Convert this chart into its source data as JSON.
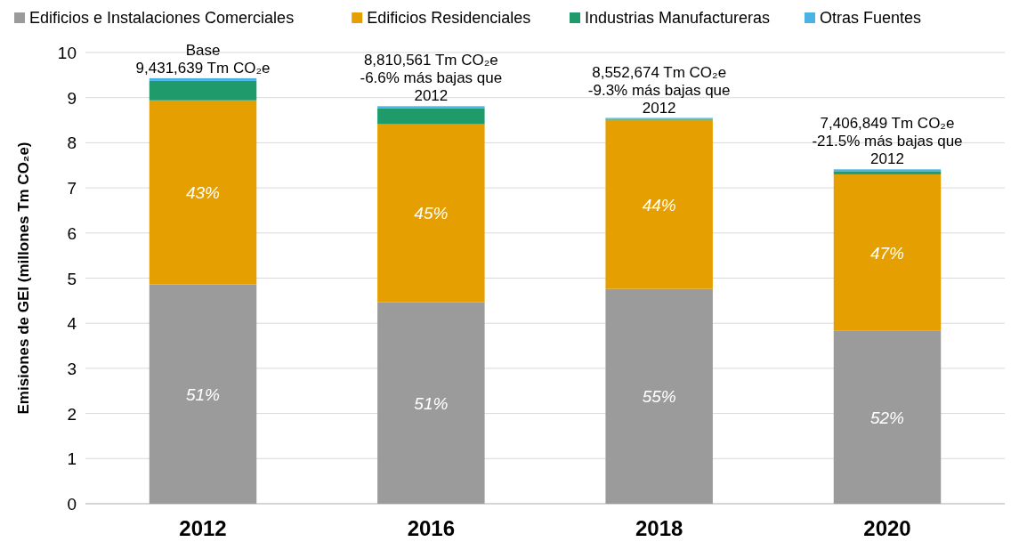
{
  "chart_data": {
    "type": "bar",
    "stacked": true,
    "ylabel": "Emisiones de GEI (millones Tm CO₂e)",
    "categories": [
      "2012",
      "2016",
      "2018",
      "2020"
    ],
    "series": [
      {
        "name": "Edificios e Instalaciones Comerciales",
        "color": "#9b9b9b",
        "values": [
          4.86,
          4.47,
          4.76,
          3.84
        ]
      },
      {
        "name": "Edificios Residenciales",
        "color": "#e69f00",
        "values": [
          4.08,
          3.94,
          3.75,
          3.46
        ]
      },
      {
        "name": "Industrias Manufactureras",
        "color": "#1f9a6b",
        "values": [
          0.43,
          0.35,
          0.02,
          0.07
        ]
      },
      {
        "name": "Otras Fuentes",
        "color": "#4ab3e6",
        "values": [
          0.06,
          0.05,
          0.02,
          0.04
        ]
      }
    ],
    "ylim": [
      0,
      10
    ],
    "yticks": [
      0,
      1,
      2,
      3,
      4,
      5,
      6,
      7,
      8,
      9,
      10
    ],
    "grid": "y",
    "legend": "top",
    "annotations": [
      "51%",
      "51%",
      "55%",
      "52%",
      "43%",
      "45%",
      "44%",
      "47%",
      {
        "text": "Base\n9,431,639 Tm CO₂e",
        "x": "2012",
        "y": 9.43
      },
      {
        "text": "8,810,561 Tm CO₂e\n-6.6% más bajas que\n2012",
        "x": "2016",
        "y": 8.81
      },
      {
        "text": "8,552,674 Tm CO₂e\n-9.3% más bajas que\n2012",
        "x": "2018",
        "y": 8.55
      },
      {
        "text": "7,406,849 Tm CO₂e\n-21.5% más bajas que\n2012",
        "x": "2020",
        "y": 7.41
      }
    ]
  }
}
